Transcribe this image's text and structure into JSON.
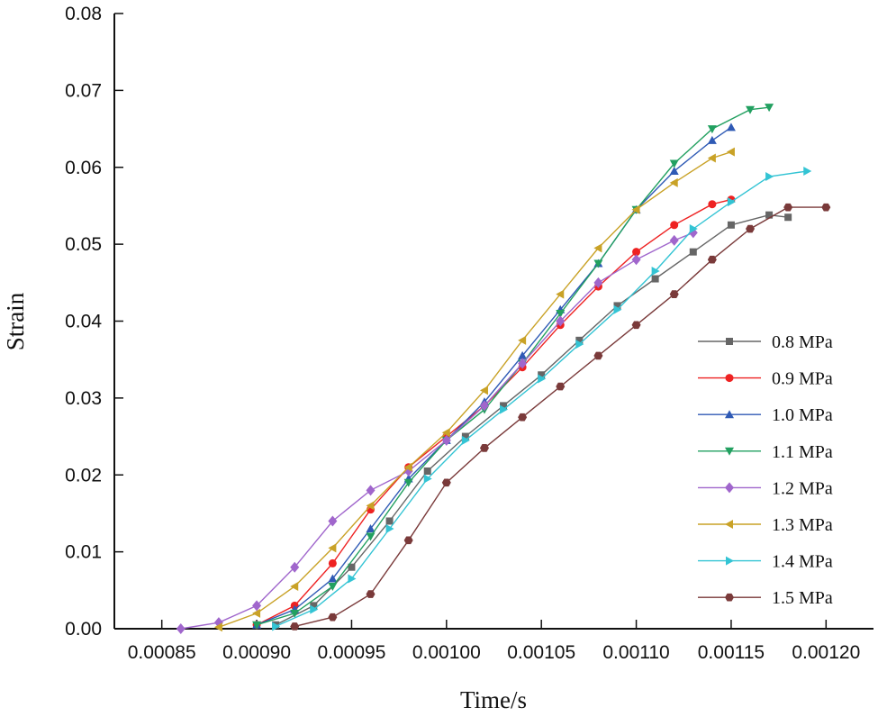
{
  "chart_data": {
    "type": "line",
    "xlabel": "Time/s",
    "ylabel": "Strain",
    "xlim": [
      0.000825,
      0.001225
    ],
    "ylim": [
      0,
      0.08
    ],
    "x_ticks": [
      "0.00085",
      "0.00090",
      "0.00095",
      "0.00100",
      "0.00105",
      "0.00110",
      "0.00115",
      "0.00120"
    ],
    "x_tick_values": [
      0.00085,
      0.0009,
      0.00095,
      0.001,
      0.00105,
      0.0011,
      0.00115,
      0.0012
    ],
    "y_ticks": [
      "0.00",
      "0.01",
      "0.02",
      "0.03",
      "0.04",
      "0.05",
      "0.06",
      "0.07",
      "0.08"
    ],
    "y_tick_values": [
      0,
      0.01,
      0.02,
      0.03,
      0.04,
      0.05,
      0.06,
      0.07,
      0.08
    ],
    "legend_position": "right",
    "series": [
      {
        "name": "0.8 MPa",
        "color": "#666666",
        "marker": "square",
        "x": [
          0.00091,
          0.00093,
          0.00095,
          0.00097,
          0.00099,
          0.00101,
          0.00103,
          0.00105,
          0.00107,
          0.00109,
          0.00111,
          0.00113,
          0.00115,
          0.00117,
          0.00118
        ],
        "y": [
          0.0005,
          0.003,
          0.008,
          0.014,
          0.0205,
          0.025,
          0.029,
          0.033,
          0.0375,
          0.042,
          0.0455,
          0.049,
          0.0525,
          0.0538,
          0.0535
        ]
      },
      {
        "name": "0.9 MPa",
        "color": "#ee2222",
        "marker": "circle",
        "x": [
          0.0009,
          0.00092,
          0.00094,
          0.00096,
          0.00098,
          0.001,
          0.00102,
          0.00104,
          0.00106,
          0.00108,
          0.0011,
          0.00112,
          0.00114,
          0.00115
        ],
        "y": [
          0.0005,
          0.003,
          0.0085,
          0.0155,
          0.021,
          0.025,
          0.029,
          0.034,
          0.0395,
          0.0445,
          0.049,
          0.0525,
          0.0552,
          0.0558
        ]
      },
      {
        "name": "1.0 MPa",
        "color": "#2f5ab5",
        "marker": "triangle-up",
        "x": [
          0.0009,
          0.00092,
          0.00094,
          0.00096,
          0.00098,
          0.001,
          0.00102,
          0.00104,
          0.00106,
          0.00108,
          0.0011,
          0.00112,
          0.00114,
          0.00115
        ],
        "y": [
          0.0005,
          0.0025,
          0.0065,
          0.013,
          0.0195,
          0.0245,
          0.0295,
          0.0355,
          0.0415,
          0.0475,
          0.0545,
          0.0595,
          0.0635,
          0.0652
        ]
      },
      {
        "name": "1.1 MPa",
        "color": "#22a060",
        "marker": "triangle-down",
        "x": [
          0.0009,
          0.00092,
          0.00094,
          0.00096,
          0.00098,
          0.001,
          0.00102,
          0.00104,
          0.00106,
          0.00108,
          0.0011,
          0.00112,
          0.00114,
          0.00116,
          0.00117
        ],
        "y": [
          0.0005,
          0.002,
          0.0055,
          0.012,
          0.019,
          0.0245,
          0.0285,
          0.0345,
          0.041,
          0.0475,
          0.0545,
          0.0605,
          0.065,
          0.0675,
          0.0678
        ]
      },
      {
        "name": "1.2 MPa",
        "color": "#a066cc",
        "marker": "diamond",
        "x": [
          0.00086,
          0.00088,
          0.0009,
          0.00092,
          0.00094,
          0.00096,
          0.00098,
          0.001,
          0.00102,
          0.00104,
          0.00106,
          0.00108,
          0.0011,
          0.00112,
          0.00113
        ],
        "y": [
          0.0,
          0.0008,
          0.003,
          0.008,
          0.014,
          0.018,
          0.0205,
          0.0245,
          0.029,
          0.0345,
          0.04,
          0.045,
          0.048,
          0.0505,
          0.0515
        ]
      },
      {
        "name": "1.3 MPa",
        "color": "#c9a227",
        "marker": "triangle-left",
        "x": [
          0.00088,
          0.0009,
          0.00092,
          0.00094,
          0.00096,
          0.00098,
          0.001,
          0.00102,
          0.00104,
          0.00106,
          0.00108,
          0.0011,
          0.00112,
          0.00114,
          0.00115
        ],
        "y": [
          0.0002,
          0.002,
          0.0055,
          0.0105,
          0.016,
          0.021,
          0.0255,
          0.031,
          0.0375,
          0.0435,
          0.0495,
          0.0545,
          0.058,
          0.0612,
          0.062
        ]
      },
      {
        "name": "1.4 MPa",
        "color": "#33c4d4",
        "marker": "triangle-right",
        "x": [
          0.00091,
          0.00093,
          0.00095,
          0.00097,
          0.00099,
          0.00101,
          0.00103,
          0.00105,
          0.00107,
          0.00109,
          0.00111,
          0.00113,
          0.00115,
          0.00117,
          0.00119
        ],
        "y": [
          0.0003,
          0.0025,
          0.0065,
          0.013,
          0.0195,
          0.0245,
          0.0285,
          0.0325,
          0.037,
          0.0415,
          0.0465,
          0.052,
          0.0555,
          0.0588,
          0.0595
        ]
      },
      {
        "name": "1.5 MPa",
        "color": "#7a3a3a",
        "marker": "hexagon",
        "x": [
          0.00092,
          0.00094,
          0.00096,
          0.00098,
          0.001,
          0.00102,
          0.00104,
          0.00106,
          0.00108,
          0.0011,
          0.00112,
          0.00114,
          0.00116,
          0.00118,
          0.0012
        ],
        "y": [
          0.0003,
          0.0015,
          0.0045,
          0.0115,
          0.019,
          0.0235,
          0.0275,
          0.0315,
          0.0355,
          0.0395,
          0.0435,
          0.048,
          0.052,
          0.0548,
          0.0548
        ]
      }
    ]
  }
}
